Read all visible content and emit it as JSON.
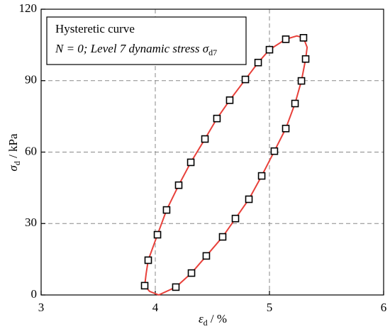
{
  "chart_data": {
    "type": "scatter",
    "annotation": [
      {
        "text": "Hysteretic curve"
      },
      {
        "text": "N = 0; Level 7 dynamic stress ",
        "symbol": "σ",
        "subscript": "d7"
      }
    ],
    "x_label": {
      "symbol": "ε",
      "subscript": "d",
      "unit": " / %"
    },
    "y_label": {
      "symbol": "σ",
      "subscript": "d",
      "unit": " / kPa"
    },
    "xlim": [
      3,
      6
    ],
    "xticks": [
      3,
      4,
      5,
      6
    ],
    "ylim": [
      0,
      120
    ],
    "yticks": [
      0,
      30,
      60,
      90,
      120
    ],
    "grid": true,
    "series": [
      {
        "kind": "line",
        "color": "#e8403a",
        "x": [
          4.03,
          3.95,
          3.907,
          3.92,
          3.938,
          4.019,
          4.099,
          4.205,
          4.311,
          4.435,
          4.54,
          4.652,
          4.789,
          4.901,
          5.0,
          5.143,
          5.24,
          5.298,
          5.33,
          5.317,
          5.28,
          5.224,
          5.143,
          5.043,
          4.932,
          4.82,
          4.702,
          4.59,
          4.447,
          4.317,
          4.18,
          4.03
        ],
        "values": [
          0,
          1.5,
          3.9,
          9,
          14.6,
          25.3,
          35.7,
          46.1,
          55.7,
          65.5,
          74.1,
          81.8,
          90.5,
          97.6,
          103,
          107.4,
          108.8,
          108,
          104,
          99.1,
          89.9,
          80.4,
          69.9,
          60.4,
          50,
          40.2,
          32.1,
          24.4,
          16.4,
          9.2,
          3.3,
          0
        ]
      },
      {
        "kind": "marker",
        "color": "#000000",
        "x": [
          3.907,
          3.938,
          4.019,
          4.099,
          4.205,
          4.311,
          4.435,
          4.54,
          4.652,
          4.789,
          4.901,
          5.0,
          5.143,
          5.298,
          5.317,
          5.28,
          5.224,
          5.143,
          5.043,
          4.932,
          4.82,
          4.702,
          4.59,
          4.447,
          4.317,
          4.18
        ],
        "values": [
          3.9,
          14.6,
          25.3,
          35.7,
          46.1,
          55.7,
          65.5,
          74.1,
          81.8,
          90.5,
          97.6,
          103,
          107.4,
          108,
          99.1,
          89.9,
          80.4,
          69.9,
          60.4,
          50,
          40.2,
          32.1,
          24.4,
          16.4,
          9.2,
          3.3
        ]
      }
    ]
  }
}
